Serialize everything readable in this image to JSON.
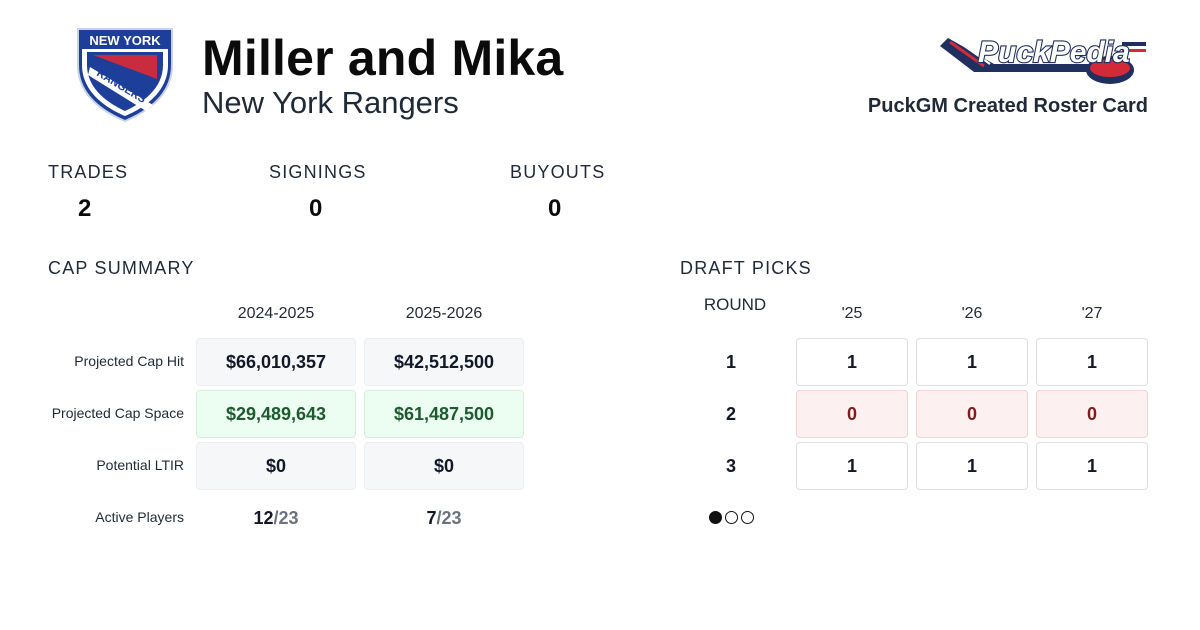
{
  "header": {
    "title": "Miller and Mika",
    "team": "New York Rangers",
    "logo_text_top": "NEW YORK",
    "logo_text_diag": "RANGERS",
    "brand_name": "PuckPedia",
    "brand_caption": "PuckGM Created Roster Card"
  },
  "stats": {
    "trades": {
      "label": "TRADES",
      "value": "2"
    },
    "signings": {
      "label": "SIGNINGS",
      "value": "0"
    },
    "buyouts": {
      "label": "BUYOUTS",
      "value": "0"
    }
  },
  "cap_summary": {
    "title": "CAP SUMMARY",
    "seasons": [
      "2024-2025",
      "2025-2026"
    ],
    "rows": [
      {
        "label": "Projected Cap Hit",
        "values": [
          "$66,010,357",
          "$42,512,500"
        ]
      },
      {
        "label": "Projected Cap Space",
        "values": [
          "$29,489,643",
          "$61,487,500"
        ]
      },
      {
        "label": "Potential LTIR",
        "values": [
          "$0",
          "$0"
        ]
      }
    ],
    "active_players": {
      "label": "Active Players",
      "values": [
        {
          "count": "12",
          "max": "23"
        },
        {
          "count": "7",
          "max": "23"
        }
      ]
    }
  },
  "draft_picks": {
    "title": "DRAFT PICKS",
    "round_label": "ROUND",
    "years": [
      "'25",
      "'26",
      "'27"
    ],
    "rounds": [
      {
        "round": "1",
        "picks": [
          "1",
          "1",
          "1"
        ]
      },
      {
        "round": "2",
        "picks": [
          "0",
          "0",
          "0"
        ]
      },
      {
        "round": "3",
        "picks": [
          "1",
          "1",
          "1"
        ]
      }
    ],
    "pagination": {
      "pages": 3,
      "current": 1
    }
  },
  "colors": {
    "positive_text": "#1d5a2e",
    "positive_bg": "#ecfdf1",
    "negative_text": "#7f1d1d",
    "negative_bg": "#fdf0f0",
    "rangers_blue": "#1d3f99",
    "rangers_red": "#d32a3a",
    "brand_navy": "#1f2f5e"
  },
  "icons": {
    "team_logo": "rangers-shield-logo",
    "brand_logo": "puckpedia-stick-logo"
  }
}
